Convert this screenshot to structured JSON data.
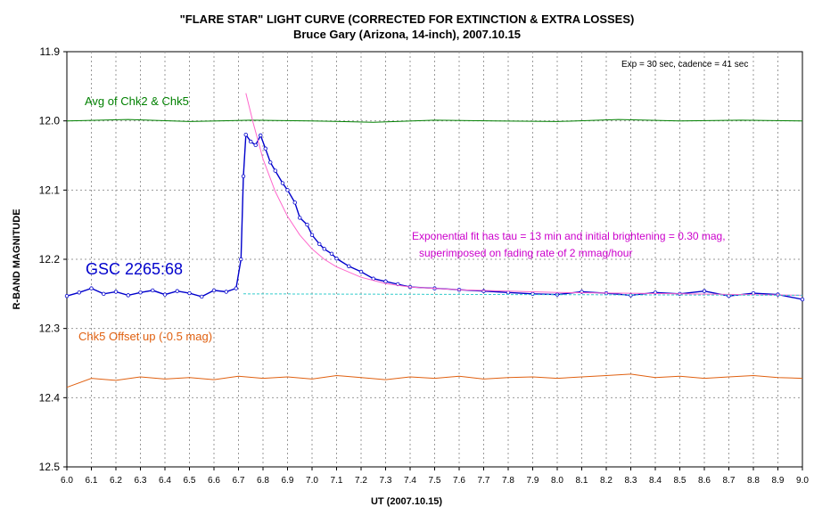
{
  "chart_data": {
    "type": "line",
    "title": "\"FLARE STAR\" LIGHT CURVE (CORRECTED FOR EXTINCTION & EXTRA LOSSES)",
    "subtitle": "Bruce Gary (Arizona, 14-inch), 2007.10.15",
    "xlabel": "UT (2007.10.15)",
    "ylabel": "R-BAND MAGNITUDE",
    "xlim": [
      6.0,
      9.0
    ],
    "ylim": [
      11.9,
      12.5
    ],
    "y_inverted": true,
    "grid": true,
    "x_ticks": [
      "6.0",
      "6.1",
      "6.2",
      "6.3",
      "6.4",
      "6.5",
      "6.6",
      "6.7",
      "6.8",
      "6.9",
      "7.0",
      "7.1",
      "7.2",
      "7.3",
      "7.4",
      "7.5",
      "7.6",
      "7.7",
      "7.8",
      "7.9",
      "8.0",
      "8.1",
      "8.2",
      "8.3",
      "8.4",
      "8.5",
      "8.6",
      "8.7",
      "8.8",
      "8.9",
      "9.0"
    ],
    "y_ticks": [
      "11.9",
      "12.0",
      "12.1",
      "12.2",
      "12.3",
      "12.4",
      "12.5"
    ],
    "series": [
      {
        "name": "GSC 2265:68",
        "color": "#0000cc",
        "x": [
          6.0,
          6.05,
          6.1,
          6.15,
          6.2,
          6.25,
          6.3,
          6.35,
          6.4,
          6.45,
          6.5,
          6.55,
          6.6,
          6.65,
          6.69,
          6.71,
          6.72,
          6.73,
          6.75,
          6.77,
          6.79,
          6.81,
          6.83,
          6.85,
          6.88,
          6.9,
          6.93,
          6.95,
          6.98,
          7.0,
          7.03,
          7.05,
          7.08,
          7.1,
          7.15,
          7.2,
          7.25,
          7.3,
          7.35,
          7.4,
          7.5,
          7.6,
          7.7,
          7.8,
          7.9,
          8.0,
          8.1,
          8.2,
          8.3,
          8.4,
          8.5,
          8.6,
          8.7,
          8.8,
          8.9,
          9.0
        ],
        "values": [
          12.253,
          12.248,
          12.242,
          12.25,
          12.247,
          12.252,
          12.248,
          12.245,
          12.251,
          12.246,
          12.249,
          12.254,
          12.245,
          12.247,
          12.242,
          12.2,
          12.08,
          12.02,
          12.03,
          12.035,
          12.021,
          12.04,
          12.06,
          12.072,
          12.09,
          12.1,
          12.118,
          12.14,
          12.15,
          12.165,
          12.178,
          12.185,
          12.192,
          12.199,
          12.21,
          12.218,
          12.228,
          12.232,
          12.236,
          12.24,
          12.242,
          12.244,
          12.246,
          12.248,
          12.25,
          12.251,
          12.247,
          12.249,
          12.252,
          12.248,
          12.25,
          12.246,
          12.253,
          12.249,
          12.251,
          12.258
        ]
      },
      {
        "name": "Avg of Chk2 & Chk5",
        "color": "#008000",
        "x": [
          6.0,
          6.25,
          6.5,
          6.75,
          7.0,
          7.25,
          7.5,
          7.75,
          8.0,
          8.25,
          8.5,
          8.75,
          9.0
        ],
        "values": [
          12.0,
          11.998,
          12.001,
          11.999,
          12.0,
          12.002,
          11.999,
          12.0,
          12.001,
          11.998,
          12.0,
          11.999,
          12.0
        ]
      },
      {
        "name": "Chk5 Offset up (-0.5 mag)",
        "color": "#e06010",
        "x": [
          6.0,
          6.1,
          6.2,
          6.3,
          6.4,
          6.5,
          6.6,
          6.7,
          6.8,
          6.9,
          7.0,
          7.1,
          7.2,
          7.3,
          7.4,
          7.5,
          7.6,
          7.7,
          7.8,
          7.9,
          8.0,
          8.1,
          8.2,
          8.3,
          8.4,
          8.5,
          8.6,
          8.7,
          8.8,
          8.9,
          9.0
        ],
        "values": [
          12.385,
          12.372,
          12.375,
          12.37,
          12.373,
          12.371,
          12.374,
          12.369,
          12.372,
          12.37,
          12.373,
          12.368,
          12.371,
          12.374,
          12.37,
          12.372,
          12.369,
          12.373,
          12.371,
          12.37,
          12.372,
          12.37,
          12.368,
          12.366,
          12.371,
          12.369,
          12.372,
          12.37,
          12.368,
          12.371,
          12.372
        ]
      },
      {
        "name": "Exponential fit",
        "color": "#ff66cc",
        "x": [
          6.73,
          6.76,
          6.8,
          6.85,
          6.9,
          6.95,
          7.0,
          7.05,
          7.1,
          7.2,
          7.3,
          7.4,
          7.5,
          7.6,
          7.8,
          8.0,
          8.5,
          9.0
        ],
        "values": [
          11.96,
          12.003,
          12.055,
          12.102,
          12.138,
          12.165,
          12.185,
          12.2,
          12.211,
          12.226,
          12.235,
          12.24,
          12.242,
          12.244,
          12.246,
          12.248,
          12.25,
          12.252
        ]
      },
      {
        "name": "Baseline",
        "color": "#33cccc",
        "x": [
          6.72,
          9.0
        ],
        "values": [
          12.25,
          12.252
        ]
      }
    ],
    "annotations": {
      "star_label": "GSC 2265:68",
      "avg_label": "Avg of Chk2 & Chk5",
      "chk5_label": "Chk5 Offset up (-0.5 mag)",
      "fit_line1": "Exponential fit has tau = 13 min and initial brightening = 0.30 mag,",
      "fit_line2": "superimposed on fading rate of 2 mmag/hour",
      "exposure": "Exp = 30 sec, cadence = 41 sec"
    },
    "colors": {
      "star": "#0000cc",
      "avg": "#008000",
      "chk5": "#e06010",
      "fit": "#ff66cc",
      "annotation_fit": "#cc00cc",
      "baseline": "#33cccc",
      "grid": "#999999"
    }
  }
}
